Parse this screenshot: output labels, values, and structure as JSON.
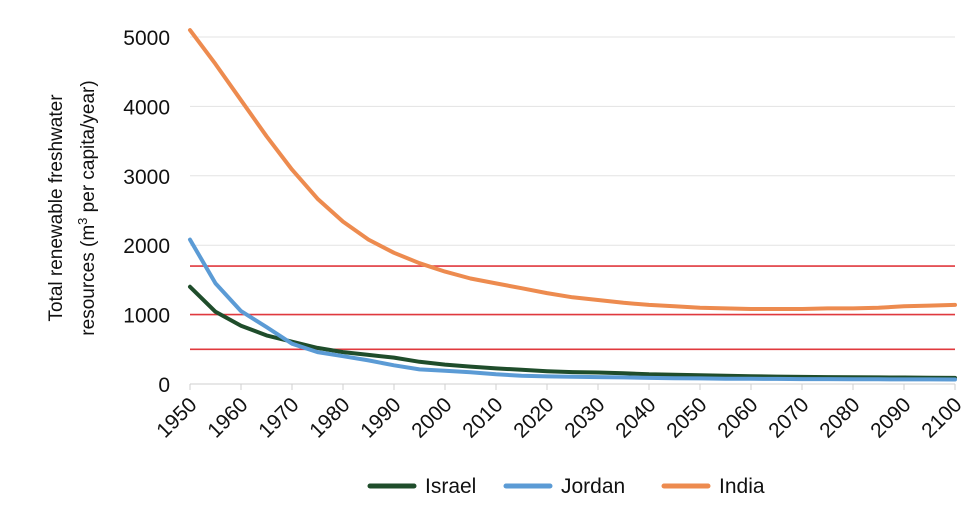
{
  "chart_data": {
    "type": "line",
    "title": "",
    "xlabel": "",
    "ylabel_line1": "Total renewable freshwater",
    "ylabel_line2_prefix": "resources (m",
    "ylabel_line2_sup": "3",
    "ylabel_line2_suffix": " per capita/year)",
    "x": [
      1950,
      1955,
      1960,
      1965,
      1970,
      1975,
      1980,
      1985,
      1990,
      1995,
      2000,
      2005,
      2010,
      2015,
      2020,
      2025,
      2030,
      2035,
      2040,
      2045,
      2050,
      2055,
      2060,
      2065,
      2070,
      2075,
      2080,
      2085,
      2090,
      2095,
      2100
    ],
    "xlim": [
      1950,
      2100
    ],
    "ylim": [
      0,
      5000
    ],
    "x_ticks": [
      "1950",
      "1960",
      "1970",
      "1980",
      "1990",
      "2000",
      "2010",
      "2020",
      "2030",
      "2040",
      "2050",
      "2060",
      "2070",
      "2080",
      "2090",
      "2100"
    ],
    "y_ticks": [
      "0",
      "1000",
      "2000",
      "3000",
      "4000",
      "5000"
    ],
    "grid": true,
    "legend_position": "bottom-center",
    "series": [
      {
        "name": "Israel",
        "color": "#1f4d2b",
        "values": [
          1400,
          1040,
          840,
          700,
          610,
          520,
          460,
          420,
          380,
          320,
          280,
          250,
          225,
          205,
          185,
          172,
          165,
          155,
          140,
          132,
          125,
          118,
          112,
          107,
          103,
          100,
          98,
          95,
          93,
          90,
          88
        ]
      },
      {
        "name": "Jordan",
        "color": "#5b9bd5",
        "values": [
          2080,
          1450,
          1050,
          820,
          580,
          460,
          400,
          340,
          270,
          210,
          190,
          170,
          140,
          120,
          110,
          105,
          100,
          95,
          88,
          83,
          80,
          77,
          75,
          73,
          71,
          70,
          69,
          68,
          67,
          66,
          65
        ]
      },
      {
        "name": "India",
        "color": "#ed8b4f",
        "values": [
          5100,
          4610,
          4090,
          3570,
          3090,
          2670,
          2340,
          2080,
          1890,
          1740,
          1620,
          1520,
          1450,
          1380,
          1310,
          1250,
          1210,
          1170,
          1140,
          1120,
          1100,
          1090,
          1080,
          1080,
          1080,
          1090,
          1090,
          1100,
          1120,
          1130,
          1140
        ]
      }
    ],
    "reference_lines": [
      {
        "value": 1700,
        "color": "#e0393e"
      },
      {
        "value": 1000,
        "color": "#e0393e"
      },
      {
        "value": 500,
        "color": "#e0393e"
      }
    ]
  }
}
